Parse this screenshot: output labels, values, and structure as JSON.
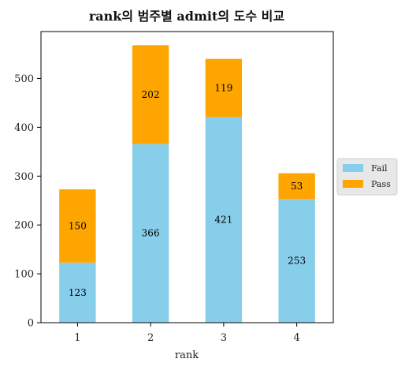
{
  "chart_data": {
    "type": "bar",
    "stacked": true,
    "title": "rank의 범주별 admit의 도수 비교",
    "xlabel": "rank",
    "ylabel": "",
    "categories": [
      "1",
      "2",
      "3",
      "4"
    ],
    "series": [
      {
        "name": "Fail",
        "values": [
          123,
          366,
          421,
          253
        ],
        "color": "#87CEEB"
      },
      {
        "name": "Pass",
        "values": [
          150,
          202,
          119,
          53
        ],
        "color": "#FFA500"
      }
    ],
    "ylim": [
      0,
      596
    ],
    "yticks": [
      0,
      100,
      200,
      300,
      400,
      500
    ],
    "legend": {
      "placement": "right",
      "entries": [
        "Fail",
        "Pass"
      ]
    },
    "grid": false
  }
}
